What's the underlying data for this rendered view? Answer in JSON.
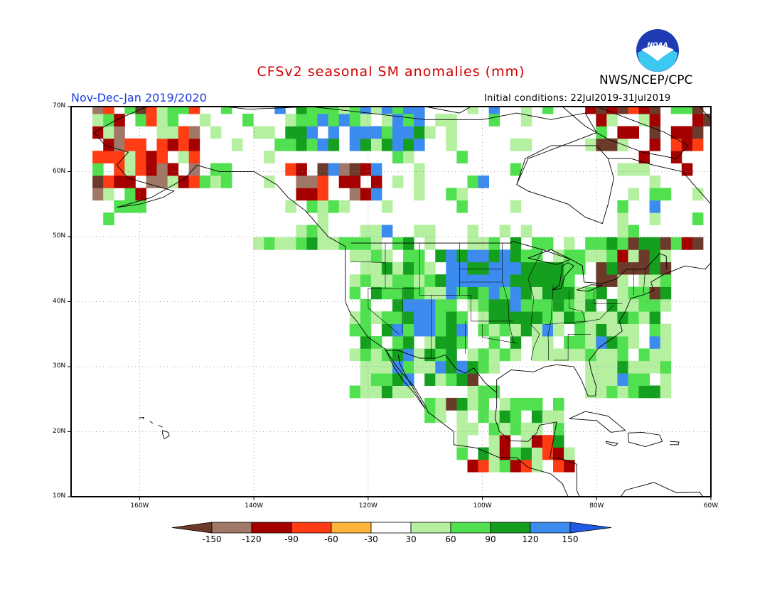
{
  "title": "CFSv2 seasonal SM anomalies (mm)",
  "agency": "NWS/NCEP/CPC",
  "logo_text": "NOAA",
  "season": "Nov-Dec-Jan 2019/2020",
  "initial_conditions": "Initial conditions: 22Jul2019-31Jul2019",
  "lat_labels": [
    "70N",
    "60N",
    "50N",
    "40N",
    "30N",
    "20N",
    "10N"
  ],
  "lon_labels": [
    "160W",
    "140W",
    "120W",
    "100W",
    "80W",
    "60W"
  ],
  "colorbar": {
    "labels": [
      "-150",
      "-120",
      "-90",
      "-60",
      "-30",
      "30",
      "60",
      "90",
      "120",
      "150"
    ],
    "colors": [
      "#6b3a2a",
      "#a07868",
      "#a50000",
      "#ff3c14",
      "#ffb43c",
      "#ffffff",
      "#b4f0a0",
      "#50e050",
      "#14a01e",
      "#3c8cf0",
      "#1e5ae6"
    ]
  },
  "map": {
    "lon_range": [
      -172,
      -60
    ],
    "lat_range": [
      10,
      70
    ],
    "grid": "dotted, every 20° lon and 10° lat",
    "anomaly_regions": [
      {
        "label": "northern Alaska coast",
        "level": "150",
        "lon": [
          -140,
          -120
        ],
        "lat": [
          66,
          70
        ]
      },
      {
        "label": "western Alaska",
        "level": "-60",
        "lon": [
          -168,
          -155
        ],
        "lat": [
          58,
          64
        ]
      },
      {
        "label": "SE Alaska / BC coast",
        "level": "-120",
        "lon": [
          -135,
          -120
        ],
        "lat": [
          56,
          62
        ]
      },
      {
        "label": "northern Plains",
        "level": "150",
        "lon": [
          -105,
          -95
        ],
        "lat": [
          41,
          48
        ]
      },
      {
        "label": "Midwest",
        "level": "120",
        "lon": [
          -97,
          -84
        ],
        "lat": [
          37,
          45
        ]
      },
      {
        "label": "Southwest",
        "level": "120",
        "lon": [
          -114,
          -103
        ],
        "lat": [
          28,
          40
        ]
      },
      {
        "label": "Southeast",
        "level": "60",
        "lon": [
          -92,
          -78
        ],
        "lat": [
          28,
          36
        ]
      },
      {
        "label": "Northeast",
        "level": "-150",
        "lon": [
          -80,
          -70
        ],
        "lat": [
          41,
          45
        ]
      }
    ]
  }
}
